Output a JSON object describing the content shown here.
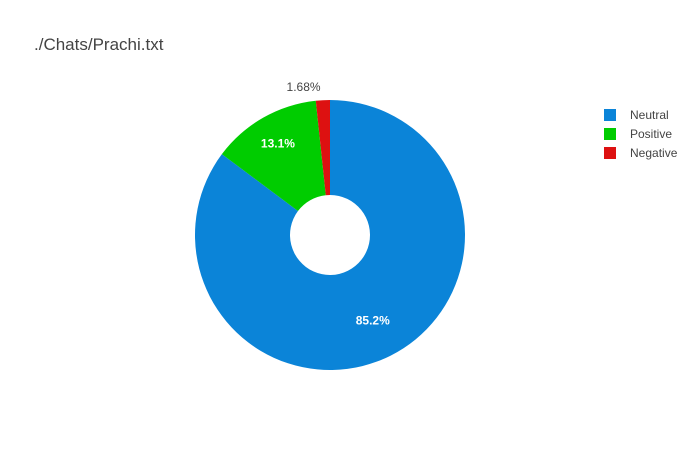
{
  "chart_data": {
    "type": "pie",
    "title": "./Chats/Prachi.txt",
    "hole": true,
    "legend_position": "top-right",
    "slices": [
      {
        "label": "Neutral",
        "value": 85.2,
        "display": "85.2%",
        "color": "#0b84d8",
        "label_position": "inside"
      },
      {
        "label": "Positive",
        "value": 13.1,
        "display": "13.1%",
        "color": "#00cc00",
        "label_position": "inside"
      },
      {
        "label": "Negative",
        "value": 1.68,
        "display": "1.68%",
        "color": "#dd1111",
        "label_position": "outside"
      }
    ]
  }
}
